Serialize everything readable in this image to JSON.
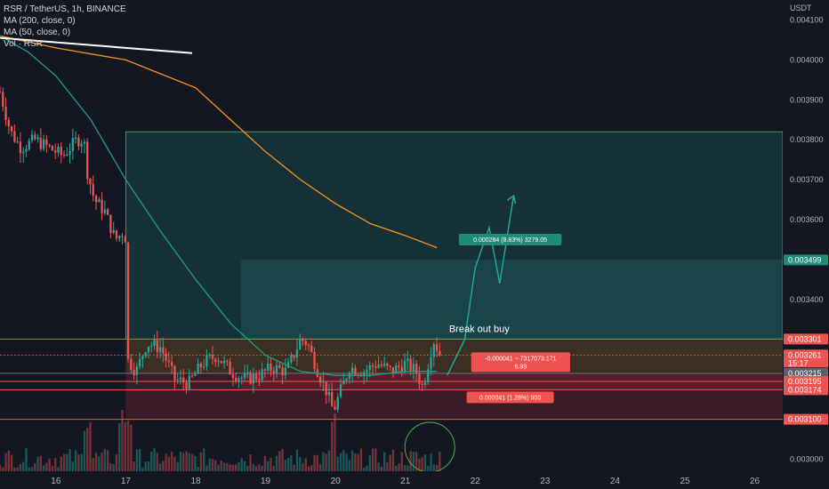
{
  "header": {
    "symbol": "RSR / TetherUS, 1h, BINANCE",
    "indicators": [
      "MA (200, close, 0)",
      "MA (50, close, 0)",
      "Vol · RSR"
    ]
  },
  "colors": {
    "background": "#131722",
    "up_candle": "#26a69a",
    "down_candle": "#ef5350",
    "ma200": "#f7931a",
    "ma50": "#1e9b86",
    "target_zone": "#1f7a6a",
    "stop_zone": "#7a1f24",
    "resistance_line": "#ef5350",
    "breakout_path": "#26a69a",
    "trendline": "#ffffff"
  },
  "chart_data": {
    "type": "candlestick",
    "symbol": "RSR/USDT",
    "timeframe": "1h",
    "exchange": "BINANCE",
    "y_unit": "USDT",
    "ylim": [
      0.00297,
      0.00415
    ],
    "y_ticks": [
      "0.004100",
      "0.004000",
      "0.003900",
      "0.003800",
      "0.003700",
      "0.003600",
      "0.003400",
      "0.003000"
    ],
    "x_day_range": [
      15.2,
      26.4
    ],
    "x_ticks": [
      {
        "day": 16,
        "label": "16"
      },
      {
        "day": 17,
        "label": "17"
      },
      {
        "day": 18,
        "label": "18"
      },
      {
        "day": 19,
        "label": "19"
      },
      {
        "day": 20,
        "label": "20"
      },
      {
        "day": 21,
        "label": "21"
      },
      {
        "day": 22,
        "label": "22"
      },
      {
        "day": 23,
        "label": "23"
      },
      {
        "day": 24,
        "label": "24"
      },
      {
        "day": 25,
        "label": "25"
      },
      {
        "day": 26,
        "label": "26"
      }
    ],
    "candle_anchors": [
      [
        15.2,
        0.00392
      ],
      [
        15.35,
        0.00382
      ],
      [
        15.5,
        0.00378
      ],
      [
        15.7,
        0.0038
      ],
      [
        15.9,
        0.00378
      ],
      [
        16.1,
        0.00376
      ],
      [
        16.3,
        0.0038
      ],
      [
        16.4,
        0.0038
      ],
      [
        16.45,
        0.00372
      ],
      [
        16.55,
        0.00365
      ],
      [
        16.7,
        0.00362
      ],
      [
        16.85,
        0.00355
      ],
      [
        16.97,
        0.00357
      ],
      [
        17.0,
        0.00355
      ],
      [
        17.02,
        0.00325
      ],
      [
        17.15,
        0.00322
      ],
      [
        17.3,
        0.00329
      ],
      [
        17.5,
        0.00328
      ],
      [
        17.7,
        0.0032
      ],
      [
        17.9,
        0.00319
      ],
      [
        18.1,
        0.00324
      ],
      [
        18.3,
        0.00326
      ],
      [
        18.5,
        0.00322
      ],
      [
        18.7,
        0.0032
      ],
      [
        18.9,
        0.00321
      ],
      [
        19.1,
        0.00323
      ],
      [
        19.3,
        0.00322
      ],
      [
        19.5,
        0.0033
      ],
      [
        19.6,
        0.00329
      ],
      [
        19.75,
        0.00322
      ],
      [
        19.85,
        0.00318
      ],
      [
        19.97,
        0.00312
      ],
      [
        20.05,
        0.00316
      ],
      [
        20.2,
        0.00323
      ],
      [
        20.4,
        0.00322
      ],
      [
        20.6,
        0.00324
      ],
      [
        20.8,
        0.00322
      ],
      [
        21.0,
        0.00324
      ],
      [
        21.15,
        0.00322
      ],
      [
        21.25,
        0.00318
      ],
      [
        21.4,
        0.0033
      ],
      [
        21.5,
        0.00326
      ]
    ],
    "ma200": [
      [
        15.2,
        0.00406
      ],
      [
        16.0,
        0.00403
      ],
      [
        17.0,
        0.004
      ],
      [
        18.0,
        0.00393
      ],
      [
        18.5,
        0.00385
      ],
      [
        19.0,
        0.00377
      ],
      [
        19.5,
        0.0037
      ],
      [
        20.0,
        0.00364
      ],
      [
        20.5,
        0.00359
      ],
      [
        21.0,
        0.00356
      ],
      [
        21.45,
        0.00353
      ]
    ],
    "ma50": [
      [
        15.2,
        0.00406
      ],
      [
        15.6,
        0.00402
      ],
      [
        16.0,
        0.00396
      ],
      [
        16.5,
        0.00385
      ],
      [
        17.0,
        0.0037
      ],
      [
        17.5,
        0.00357
      ],
      [
        18.0,
        0.00345
      ],
      [
        18.5,
        0.00334
      ],
      [
        19.0,
        0.00326
      ],
      [
        19.5,
        0.00322
      ],
      [
        20.0,
        0.00321
      ],
      [
        20.5,
        0.00321
      ],
      [
        21.0,
        0.00322
      ],
      [
        21.45,
        0.00322
      ]
    ],
    "trendline": [
      [
        15.2,
        0.004055
      ],
      [
        17.95,
        0.004017
      ]
    ],
    "projected_path": [
      [
        21.6,
        0.00321
      ],
      [
        21.85,
        0.0033
      ],
      [
        22.0,
        0.00348
      ],
      [
        22.2,
        0.00358
      ],
      [
        22.35,
        0.00344
      ],
      [
        22.55,
        0.00366
      ]
    ],
    "horizontal_levels": [
      {
        "price": 0.003301,
        "label": "0.003301",
        "kind": "red"
      },
      {
        "price": 0.003261,
        "label": "0.003261",
        "kind": "current"
      },
      {
        "price": 0.003215,
        "label": "0.003215",
        "kind": "grey"
      },
      {
        "price": 0.003195,
        "label": "0.003195",
        "kind": "red"
      },
      {
        "price": 0.003174,
        "label": "0.003174",
        "kind": "red"
      },
      {
        "price": 0.0031,
        "label": "0.003100",
        "kind": "red"
      }
    ],
    "target_price_label": "0.003499",
    "countdown": "15:17",
    "zones": [
      {
        "kind": "green",
        "from_day": 17.0,
        "to_day": 26.4,
        "low": 0.003301,
        "high": 0.00382
      },
      {
        "kind": "green",
        "from_day": 18.65,
        "to_day": 26.4,
        "low": 0.003301,
        "high": 0.003499
      },
      {
        "kind": "orange",
        "from_day": 17.0,
        "to_day": 26.4,
        "low": 0.003215,
        "high": 0.003301
      },
      {
        "kind": "red",
        "from_day": 17.0,
        "to_day": 26.4,
        "low": 0.0031,
        "high": 0.003215
      },
      {
        "kind": "red",
        "from_day": 18.65,
        "to_day": 26.4,
        "low": 0.003174,
        "high": 0.003215
      }
    ],
    "annotations": {
      "break_out_text": "Break out buy",
      "target_label": "0.000284 (8.83%) 3279.05",
      "range_label_line1": "-0.000041 ~ 7317073.171",
      "range_label_line2": "6.93",
      "stop_label": "0.000041 (1.28%) 900"
    },
    "volume_highlight_day": 21.35,
    "y_axis_title": "USDT"
  }
}
